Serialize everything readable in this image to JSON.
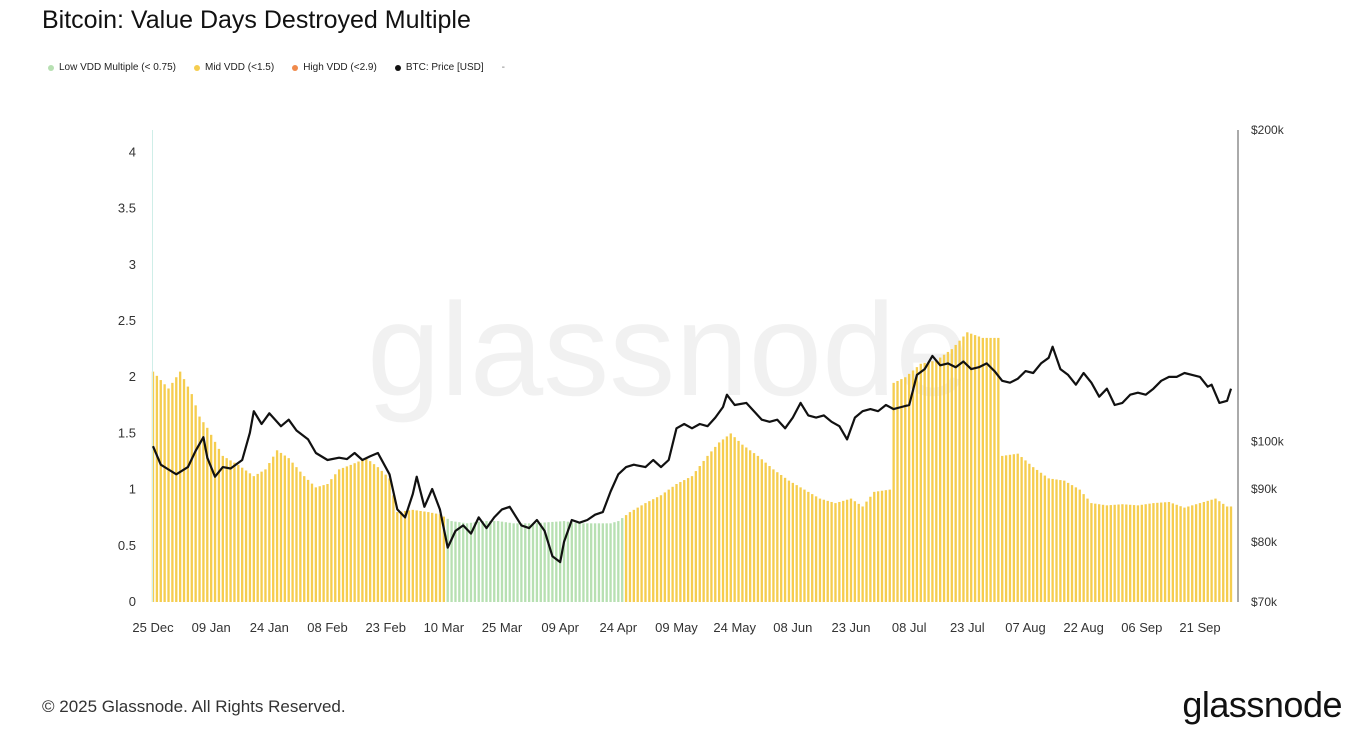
{
  "title": "Bitcoin: Value Days Destroyed Multiple",
  "legend": [
    {
      "label": "Low VDD Multiple (< 0.75)",
      "color": "#b7e0b2"
    },
    {
      "label": "Mid VDD (<1.5)",
      "color": "#f5cd4f"
    },
    {
      "label": "High VDD (<2.9)",
      "color": "#f08a4b"
    },
    {
      "label": "BTC: Price [USD]",
      "color": "#111111"
    }
  ],
  "legend_extra": "-",
  "watermark": "glassnode",
  "footer": "© 2025 Glassnode. All Rights Reserved.",
  "brand": "glassnode",
  "chart_data": {
    "type": "bar",
    "title": "Bitcoin: Value Days Destroyed Multiple",
    "x_ticks": [
      "25 Dec",
      "09 Jan",
      "24 Jan",
      "08 Feb",
      "23 Feb",
      "10 Mar",
      "25 Mar",
      "09 Apr",
      "24 Apr",
      "09 May",
      "24 May",
      "08 Jun",
      "23 Jun",
      "08 Jul",
      "23 Jul",
      "07 Aug",
      "22 Aug",
      "06 Sep",
      "21 Sep"
    ],
    "y_left": {
      "ticks": [
        "0",
        "0.5",
        "1",
        "1.5",
        "2",
        "2.5",
        "3",
        "3.5",
        "4"
      ],
      "ylim": [
        0,
        4.2
      ]
    },
    "y_right": {
      "ticks": [
        "$70k",
        "$80k",
        "$90k",
        "$100k",
        "$200k"
      ],
      "tick_values": [
        70000,
        80000,
        90000,
        100000,
        200000
      ],
      "scale": "log"
    },
    "grid": false,
    "legend_position": "top-left",
    "series": [
      {
        "name": "VDD Multiple",
        "axis": "left",
        "color_rule": {
          "low_threshold": 0.75,
          "low_color": "#b7e0b2",
          "mid_color": "#f5cd4f"
        },
        "points": [
          [
            "2024-12-25",
            2.05
          ],
          [
            "2024-12-29",
            1.9
          ],
          [
            "2025-01-01",
            2.05
          ],
          [
            "2025-01-04",
            1.85
          ],
          [
            "2025-01-06",
            1.65
          ],
          [
            "2025-01-08",
            1.55
          ],
          [
            "2025-01-12",
            1.3
          ],
          [
            "2025-01-16",
            1.22
          ],
          [
            "2025-01-20",
            1.12
          ],
          [
            "2025-01-23",
            1.18
          ],
          [
            "2025-01-26",
            1.35
          ],
          [
            "2025-01-29",
            1.28
          ],
          [
            "2025-02-02",
            1.12
          ],
          [
            "2025-02-05",
            1.02
          ],
          [
            "2025-02-08",
            1.05
          ],
          [
            "2025-02-11",
            1.18
          ],
          [
            "2025-02-14",
            1.22
          ],
          [
            "2025-02-18",
            1.28
          ],
          [
            "2025-02-21",
            1.2
          ],
          [
            "2025-02-24",
            1.1
          ],
          [
            "2025-02-26",
            0.8
          ],
          [
            "2025-03-02",
            0.82
          ],
          [
            "2025-03-06",
            0.8
          ],
          [
            "2025-03-09",
            0.78
          ],
          [
            "2025-03-12",
            0.72
          ],
          [
            "2025-03-16",
            0.7
          ],
          [
            "2025-03-20",
            0.72
          ],
          [
            "2025-03-24",
            0.72
          ],
          [
            "2025-03-28",
            0.7
          ],
          [
            "2025-04-02",
            0.7
          ],
          [
            "2025-04-06",
            0.71
          ],
          [
            "2025-04-10",
            0.72
          ],
          [
            "2025-04-14",
            0.7
          ],
          [
            "2025-04-18",
            0.7
          ],
          [
            "2025-04-22",
            0.7
          ],
          [
            "2025-04-24",
            0.72
          ],
          [
            "2025-04-27",
            0.8
          ],
          [
            "2025-05-01",
            0.88
          ],
          [
            "2025-05-05",
            0.95
          ],
          [
            "2025-05-09",
            1.05
          ],
          [
            "2025-05-13",
            1.12
          ],
          [
            "2025-05-17",
            1.3
          ],
          [
            "2025-05-20",
            1.42
          ],
          [
            "2025-05-23",
            1.5
          ],
          [
            "2025-05-26",
            1.4
          ],
          [
            "2025-05-30",
            1.3
          ],
          [
            "2025-06-03",
            1.18
          ],
          [
            "2025-06-07",
            1.08
          ],
          [
            "2025-06-11",
            1.0
          ],
          [
            "2025-06-15",
            0.92
          ],
          [
            "2025-06-19",
            0.88
          ],
          [
            "2025-06-23",
            0.92
          ],
          [
            "2025-06-26",
            0.85
          ],
          [
            "2025-06-29",
            0.98
          ],
          [
            "2025-07-03",
            1.0
          ],
          [
            "2025-07-04",
            1.95
          ],
          [
            "2025-07-07",
            2.0
          ],
          [
            "2025-07-11",
            2.12
          ],
          [
            "2025-07-15",
            2.15
          ],
          [
            "2025-07-19",
            2.25
          ],
          [
            "2025-07-23",
            2.4
          ],
          [
            "2025-07-27",
            2.35
          ],
          [
            "2025-07-31",
            2.35
          ],
          [
            "2025-08-01",
            1.3
          ],
          [
            "2025-08-05",
            1.32
          ],
          [
            "2025-08-09",
            1.2
          ],
          [
            "2025-08-13",
            1.1
          ],
          [
            "2025-08-17",
            1.08
          ],
          [
            "2025-08-21",
            1.0
          ],
          [
            "2025-08-24",
            0.88
          ],
          [
            "2025-08-28",
            0.86
          ],
          [
            "2025-09-01",
            0.87
          ],
          [
            "2025-09-05",
            0.86
          ],
          [
            "2025-09-09",
            0.88
          ],
          [
            "2025-09-13",
            0.89
          ],
          [
            "2025-09-17",
            0.84
          ],
          [
            "2025-09-21",
            0.88
          ],
          [
            "2025-09-25",
            0.92
          ],
          [
            "2025-09-28",
            0.85
          ]
        ]
      },
      {
        "name": "BTC: Price [USD]",
        "axis": "right",
        "color": "#111111",
        "points": [
          [
            "2024-12-25",
            99000
          ],
          [
            "2024-12-27",
            95000
          ],
          [
            "2024-12-29",
            94000
          ],
          [
            "2024-12-31",
            93000
          ],
          [
            "2025-01-03",
            94500
          ],
          [
            "2025-01-05",
            98000
          ],
          [
            "2025-01-07",
            101000
          ],
          [
            "2025-01-08",
            96500
          ],
          [
            "2025-01-10",
            92500
          ],
          [
            "2025-01-12",
            94500
          ],
          [
            "2025-01-14",
            94200
          ],
          [
            "2025-01-17",
            96000
          ],
          [
            "2025-01-19",
            102000
          ],
          [
            "2025-01-20",
            107000
          ],
          [
            "2025-01-22",
            104000
          ],
          [
            "2025-01-24",
            106500
          ],
          [
            "2025-01-27",
            103500
          ],
          [
            "2025-01-29",
            105000
          ],
          [
            "2025-01-31",
            102500
          ],
          [
            "2025-02-03",
            100500
          ],
          [
            "2025-02-05",
            97500
          ],
          [
            "2025-02-08",
            96000
          ],
          [
            "2025-02-11",
            96500
          ],
          [
            "2025-02-13",
            96200
          ],
          [
            "2025-02-15",
            97500
          ],
          [
            "2025-02-17",
            96000
          ],
          [
            "2025-02-19",
            96800
          ],
          [
            "2025-02-21",
            97500
          ],
          [
            "2025-02-24",
            93000
          ],
          [
            "2025-02-26",
            86000
          ],
          [
            "2025-02-28",
            84500
          ],
          [
            "2025-03-02",
            89000
          ],
          [
            "2025-03-03",
            92500
          ],
          [
            "2025-03-05",
            86500
          ],
          [
            "2025-03-07",
            90000
          ],
          [
            "2025-03-09",
            86000
          ],
          [
            "2025-03-11",
            79000
          ],
          [
            "2025-03-13",
            82000
          ],
          [
            "2025-03-15",
            83000
          ],
          [
            "2025-03-17",
            81500
          ],
          [
            "2025-03-19",
            84500
          ],
          [
            "2025-03-21",
            82500
          ],
          [
            "2025-03-23",
            84500
          ],
          [
            "2025-03-25",
            86000
          ],
          [
            "2025-03-27",
            86500
          ],
          [
            "2025-03-30",
            83000
          ],
          [
            "2025-04-01",
            82500
          ],
          [
            "2025-04-03",
            84000
          ],
          [
            "2025-04-05",
            82000
          ],
          [
            "2025-04-07",
            77500
          ],
          [
            "2025-04-09",
            76500
          ],
          [
            "2025-04-10",
            80000
          ],
          [
            "2025-04-12",
            84000
          ],
          [
            "2025-04-14",
            83500
          ],
          [
            "2025-04-16",
            84000
          ],
          [
            "2025-04-18",
            85000
          ],
          [
            "2025-04-20",
            85500
          ],
          [
            "2025-04-22",
            89500
          ],
          [
            "2025-04-24",
            93000
          ],
          [
            "2025-04-26",
            94500
          ],
          [
            "2025-04-28",
            95000
          ],
          [
            "2025-05-01",
            94500
          ],
          [
            "2025-05-03",
            96000
          ],
          [
            "2025-05-05",
            94500
          ],
          [
            "2025-05-07",
            96000
          ],
          [
            "2025-05-09",
            103000
          ],
          [
            "2025-05-11",
            104000
          ],
          [
            "2025-05-13",
            103000
          ],
          [
            "2025-05-15",
            104000
          ],
          [
            "2025-05-17",
            103500
          ],
          [
            "2025-05-19",
            105500
          ],
          [
            "2025-05-21",
            108000
          ],
          [
            "2025-05-22",
            111000
          ],
          [
            "2025-05-24",
            108500
          ],
          [
            "2025-05-27",
            109000
          ],
          [
            "2025-05-29",
            107000
          ],
          [
            "2025-05-31",
            105000
          ],
          [
            "2025-06-02",
            104500
          ],
          [
            "2025-06-04",
            105000
          ],
          [
            "2025-06-06",
            103000
          ],
          [
            "2025-06-08",
            105500
          ],
          [
            "2025-06-10",
            109000
          ],
          [
            "2025-06-12",
            106000
          ],
          [
            "2025-06-14",
            105500
          ],
          [
            "2025-06-16",
            106000
          ],
          [
            "2025-06-18",
            104500
          ],
          [
            "2025-06-20",
            103500
          ],
          [
            "2025-06-22",
            100500
          ],
          [
            "2025-06-24",
            105500
          ],
          [
            "2025-06-26",
            107000
          ],
          [
            "2025-06-28",
            107500
          ],
          [
            "2025-06-30",
            107000
          ],
          [
            "2025-07-02",
            108500
          ],
          [
            "2025-07-04",
            107500
          ],
          [
            "2025-07-06",
            108000
          ],
          [
            "2025-07-08",
            108500
          ],
          [
            "2025-07-10",
            116000
          ],
          [
            "2025-07-12",
            117500
          ],
          [
            "2025-07-14",
            121000
          ],
          [
            "2025-07-16",
            118500
          ],
          [
            "2025-07-18",
            119000
          ],
          [
            "2025-07-20",
            118000
          ],
          [
            "2025-07-22",
            119500
          ],
          [
            "2025-07-24",
            117500
          ],
          [
            "2025-07-26",
            118000
          ],
          [
            "2025-07-28",
            119000
          ],
          [
            "2025-07-30",
            117000
          ],
          [
            "2025-08-01",
            114500
          ],
          [
            "2025-08-03",
            114000
          ],
          [
            "2025-08-05",
            115000
          ],
          [
            "2025-08-07",
            117000
          ],
          [
            "2025-08-09",
            116500
          ],
          [
            "2025-08-11",
            119000
          ],
          [
            "2025-08-13",
            120500
          ],
          [
            "2025-08-14",
            123500
          ],
          [
            "2025-08-16",
            117500
          ],
          [
            "2025-08-18",
            116000
          ],
          [
            "2025-08-20",
            113500
          ],
          [
            "2025-08-22",
            116500
          ],
          [
            "2025-08-24",
            114000
          ],
          [
            "2025-08-26",
            110500
          ],
          [
            "2025-08-28",
            112500
          ],
          [
            "2025-08-30",
            108500
          ],
          [
            "2025-09-01",
            109000
          ],
          [
            "2025-09-03",
            111000
          ],
          [
            "2025-09-05",
            111500
          ],
          [
            "2025-09-07",
            111000
          ],
          [
            "2025-09-09",
            112500
          ],
          [
            "2025-09-11",
            114500
          ],
          [
            "2025-09-13",
            115500
          ],
          [
            "2025-09-15",
            115500
          ],
          [
            "2025-09-17",
            116500
          ],
          [
            "2025-09-19",
            116000
          ],
          [
            "2025-09-21",
            115500
          ],
          [
            "2025-09-23",
            113000
          ],
          [
            "2025-09-24",
            113500
          ],
          [
            "2025-09-26",
            109000
          ],
          [
            "2025-09-28",
            109500
          ],
          [
            "2025-09-29",
            112500
          ]
        ]
      }
    ]
  }
}
